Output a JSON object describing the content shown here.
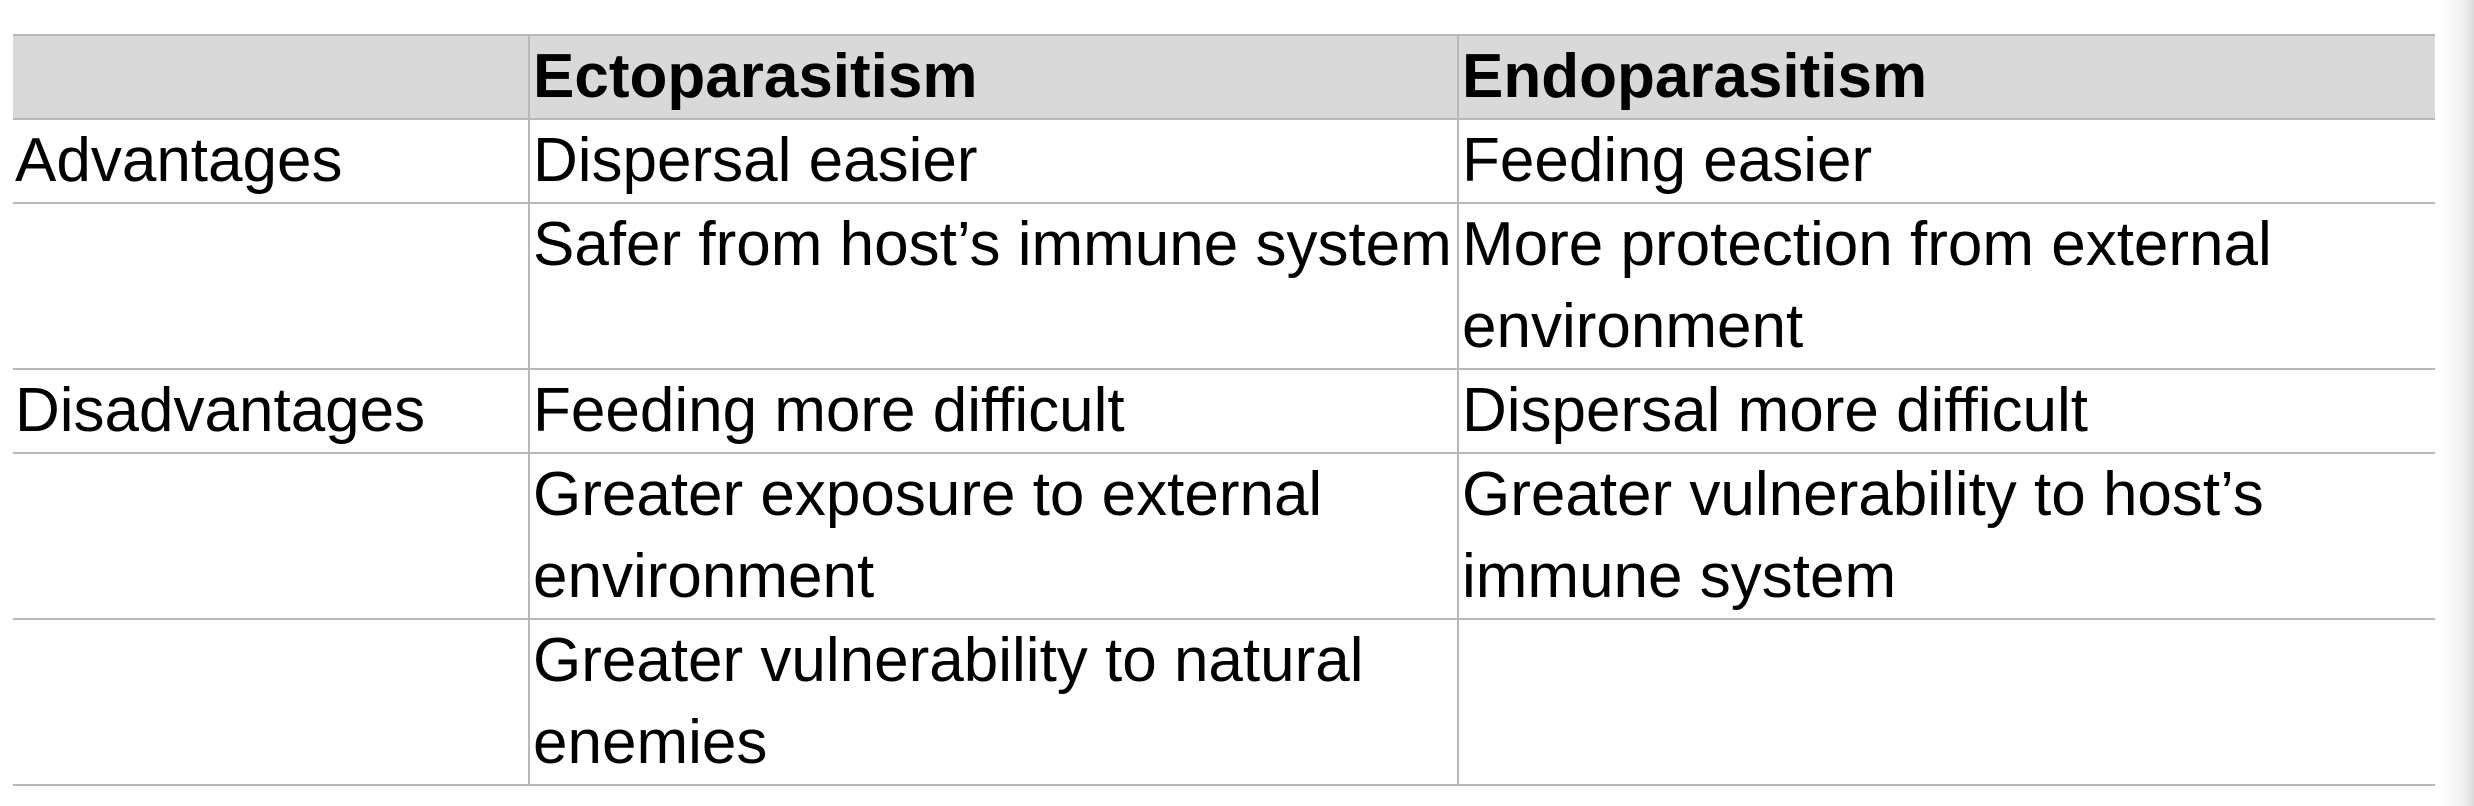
{
  "table": {
    "header": [
      "",
      "Ectoparasitism",
      "Endoparasitism"
    ],
    "rows": [
      [
        "Advantages",
        "Dispersal easier",
        "Feeding easier"
      ],
      [
        "",
        "Safer from host’s immune system",
        "More protection from external environment"
      ],
      [
        "Disadvantages",
        "Feeding more difficult",
        "Dispersal more difficult"
      ],
      [
        "",
        "Greater exposure to external environment",
        "Greater vulnerability to host’s immune system"
      ],
      [
        "",
        "Greater vulnerability to natural enemies",
        ""
      ]
    ]
  },
  "colors": {
    "header_background": "#d9d9d9",
    "grid_line": "#b8b8b8",
    "text": "#000000"
  }
}
